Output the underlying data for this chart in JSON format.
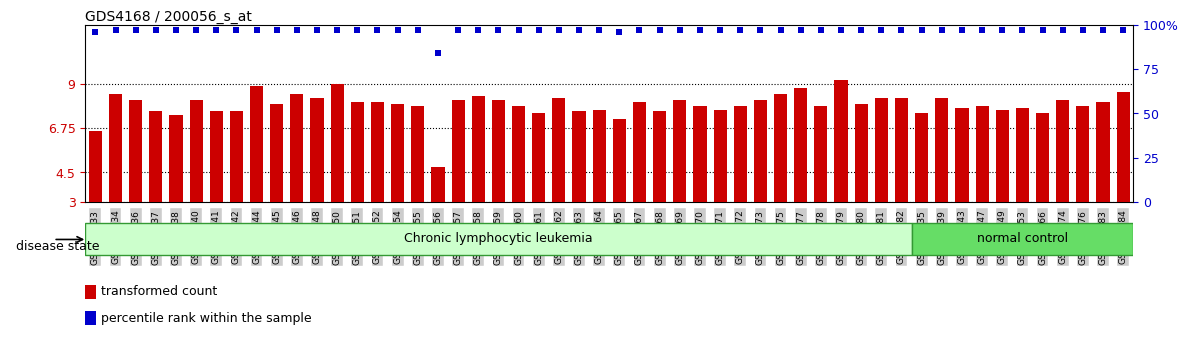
{
  "title": "GDS4168 / 200056_s_at",
  "samples": [
    "GSM559433",
    "GSM559434",
    "GSM559436",
    "GSM559437",
    "GSM559438",
    "GSM559440",
    "GSM559441",
    "GSM559442",
    "GSM559444",
    "GSM559445",
    "GSM559446",
    "GSM559448",
    "GSM559450",
    "GSM559451",
    "GSM559452",
    "GSM559454",
    "GSM559455",
    "GSM559456",
    "GSM559457",
    "GSM559458",
    "GSM559459",
    "GSM559460",
    "GSM559461",
    "GSM559462",
    "GSM559463",
    "GSM559464",
    "GSM559465",
    "GSM559467",
    "GSM559468",
    "GSM559469",
    "GSM559470",
    "GSM559471",
    "GSM559472",
    "GSM559473",
    "GSM559475",
    "GSM559477",
    "GSM559478",
    "GSM559479",
    "GSM559480",
    "GSM559481",
    "GSM559482",
    "GSM559435",
    "GSM559439",
    "GSM559443",
    "GSM559447",
    "GSM559449",
    "GSM559453",
    "GSM559466",
    "GSM559474",
    "GSM559476",
    "GSM559483",
    "GSM559484"
  ],
  "bar_values": [
    6.6,
    8.5,
    8.2,
    7.6,
    7.4,
    8.2,
    7.6,
    7.6,
    8.9,
    8.0,
    8.5,
    8.3,
    9.0,
    8.1,
    8.1,
    8.0,
    7.9,
    4.8,
    8.2,
    8.4,
    8.2,
    7.9,
    7.5,
    8.3,
    7.6,
    7.7,
    7.2,
    8.1,
    7.6,
    8.2,
    7.9,
    7.7,
    7.9,
    8.2,
    8.5,
    8.8,
    7.9,
    9.2,
    8.0,
    8.3,
    8.3,
    7.5,
    8.3,
    7.8,
    7.9,
    7.7,
    7.8,
    7.5,
    8.2,
    7.9,
    8.1,
    8.6
  ],
  "percentile_values": [
    96,
    97,
    97,
    97,
    97,
    97,
    97,
    97,
    97,
    97,
    97,
    97,
    97,
    97,
    97,
    97,
    97,
    84,
    97,
    97,
    97,
    97,
    97,
    97,
    97,
    97,
    96,
    97,
    97,
    97,
    97,
    97,
    97,
    97,
    97,
    97,
    97,
    97,
    97,
    97,
    97,
    97,
    97,
    97,
    97,
    97,
    97,
    97,
    97,
    97,
    97,
    97
  ],
  "disease_groups": [
    {
      "label": "Chronic lymphocytic leukemia",
      "start": 0,
      "end": 41,
      "color": "#ccffcc"
    },
    {
      "label": "normal control",
      "start": 41,
      "end": 52,
      "color": "#66dd66"
    }
  ],
  "ylim_left": [
    3,
    12
  ],
  "yticks_left": [
    3,
    4.5,
    6.75,
    9
  ],
  "ytick_labels_left": [
    "3",
    "4.5",
    "6.75",
    "9"
  ],
  "ylim_right": [
    0,
    100
  ],
  "yticks_right": [
    0,
    25,
    50,
    75,
    100
  ],
  "ytick_labels_right": [
    "0",
    "25",
    "50",
    "75",
    "100%"
  ],
  "bar_color": "#cc0000",
  "dot_color": "#0000cc",
  "title_color": "#000000",
  "left_tick_color": "#cc0000",
  "right_tick_color": "#0000cc",
  "legend_entries": [
    "transformed count",
    "percentile rank within the sample"
  ],
  "legend_colors": [
    "#cc0000",
    "#0000cc"
  ],
  "disease_state_label": "disease state",
  "xlabel_tick_bg": "#cccccc",
  "n_cll": 41,
  "n_total": 52
}
